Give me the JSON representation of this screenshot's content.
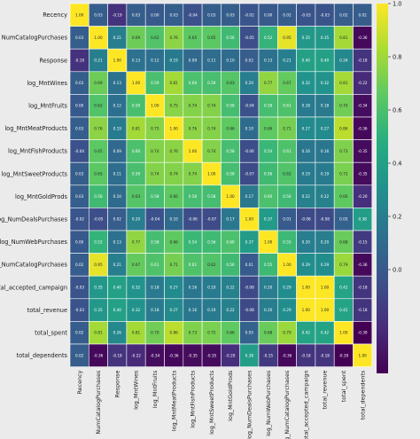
{
  "chart_data": {
    "type": "heatmap",
    "title": "",
    "xlabel": "",
    "ylabel": "",
    "variables": [
      "Recency",
      "NumCatalogPurchases",
      "Response",
      "log_MntWines",
      "log_MntFruits",
      "log_MntMeatProducts",
      "log_MntFishProducts",
      "log_MntSweetProducts",
      "log_MntGoldProds",
      "log_NumDealsPurchases",
      "log_NumWebPurchases",
      "log_NumCatalogPurchases",
      "total_accepted_campaign",
      "total_revenue",
      "total_spent",
      "total_dependents"
    ],
    "matrix": [
      [
        1.0,
        0.03,
        -0.19,
        0.03,
        0.0,
        0.03,
        -0.04,
        0.03,
        0.03,
        -0.02,
        0.0,
        0.02,
        -0.03,
        -0.03,
        0.02,
        0.02
      ],
      [
        0.03,
        1.0,
        0.21,
        0.69,
        0.62,
        0.76,
        0.65,
        0.65,
        0.56,
        -0.05,
        0.52,
        0.95,
        0.35,
        0.35,
        0.81,
        -0.36
      ],
      [
        -0.19,
        0.21,
        1.0,
        0.13,
        0.12,
        0.19,
        0.09,
        0.11,
        0.1,
        0.02,
        0.13,
        0.21,
        0.4,
        0.4,
        0.26,
        -0.18
      ],
      [
        0.03,
        0.69,
        0.13,
        1.0,
        0.59,
        0.81,
        0.6,
        0.59,
        0.63,
        0.2,
        0.77,
        0.67,
        0.32,
        0.32,
        0.81,
        -0.22
      ],
      [
        0.0,
        0.62,
        0.12,
        0.59,
        1.0,
        0.75,
        0.74,
        0.74,
        0.58,
        -0.04,
        0.58,
        0.61,
        0.18,
        0.18,
        0.7,
        -0.34
      ],
      [
        0.03,
        0.76,
        0.19,
        0.81,
        0.75,
        1.0,
        0.76,
        0.74,
        0.66,
        0.1,
        0.66,
        0.71,
        0.27,
        0.27,
        0.86,
        -0.36
      ],
      [
        -0.04,
        0.65,
        0.09,
        0.6,
        0.74,
        0.76,
        1.0,
        0.74,
        0.58,
        -0.06,
        0.54,
        0.61,
        0.16,
        0.16,
        0.73,
        -0.35
      ],
      [
        0.03,
        0.65,
        0.11,
        0.59,
        0.74,
        0.74,
        0.74,
        1.0,
        0.58,
        -0.07,
        0.56,
        0.62,
        0.19,
        0.19,
        0.72,
        -0.35
      ],
      [
        0.03,
        0.56,
        0.1,
        0.63,
        0.58,
        0.66,
        0.58,
        0.58,
        1.0,
        0.17,
        0.6,
        0.56,
        0.22,
        0.22,
        0.66,
        -0.2
      ],
      [
        -0.02,
        -0.05,
        0.02,
        0.2,
        -0.04,
        0.1,
        -0.06,
        -0.07,
        0.17,
        1.0,
        0.37,
        0.01,
        -0.08,
        -0.08,
        0.05,
        0.38
      ],
      [
        0.0,
        0.52,
        0.13,
        0.77,
        0.58,
        0.66,
        0.54,
        0.56,
        0.6,
        0.37,
        1.0,
        0.55,
        0.2,
        0.2,
        0.68,
        -0.15
      ],
      [
        0.02,
        0.95,
        0.21,
        0.67,
        0.61,
        0.71,
        0.61,
        0.62,
        0.56,
        0.01,
        0.55,
        1.0,
        0.29,
        0.29,
        0.79,
        -0.36
      ],
      [
        -0.03,
        0.35,
        0.4,
        0.32,
        0.18,
        0.27,
        0.16,
        0.19,
        0.22,
        -0.08,
        0.2,
        0.29,
        1.0,
        1.0,
        0.42,
        -0.18
      ],
      [
        -0.03,
        0.35,
        0.4,
        0.32,
        0.18,
        0.27,
        0.16,
        0.19,
        0.22,
        -0.08,
        0.2,
        0.29,
        1.0,
        1.0,
        0.42,
        -0.18
      ],
      [
        0.02,
        0.81,
        0.26,
        0.81,
        0.7,
        0.86,
        0.73,
        0.72,
        0.66,
        0.05,
        0.68,
        0.79,
        0.42,
        0.42,
        1.0,
        -0.39
      ],
      [
        0.02,
        -0.36,
        -0.18,
        -0.22,
        -0.34,
        -0.36,
        -0.35,
        -0.35,
        -0.2,
        0.38,
        -0.15,
        -0.36,
        -0.18,
        -0.18,
        -0.39,
        1.0
      ]
    ],
    "colormap": "viridis",
    "vmin": -0.39,
    "vmax": 1.0,
    "colorbar_ticks": [
      "0.0",
      "0.2",
      "0.4",
      "0.6",
      "0.8",
      "1.0"
    ],
    "colorbar_tick_values": [
      0.0,
      0.2,
      0.4,
      0.6,
      0.8,
      1.0
    ],
    "annotated": true,
    "annotation_format": "2 decimals",
    "grid": true
  }
}
